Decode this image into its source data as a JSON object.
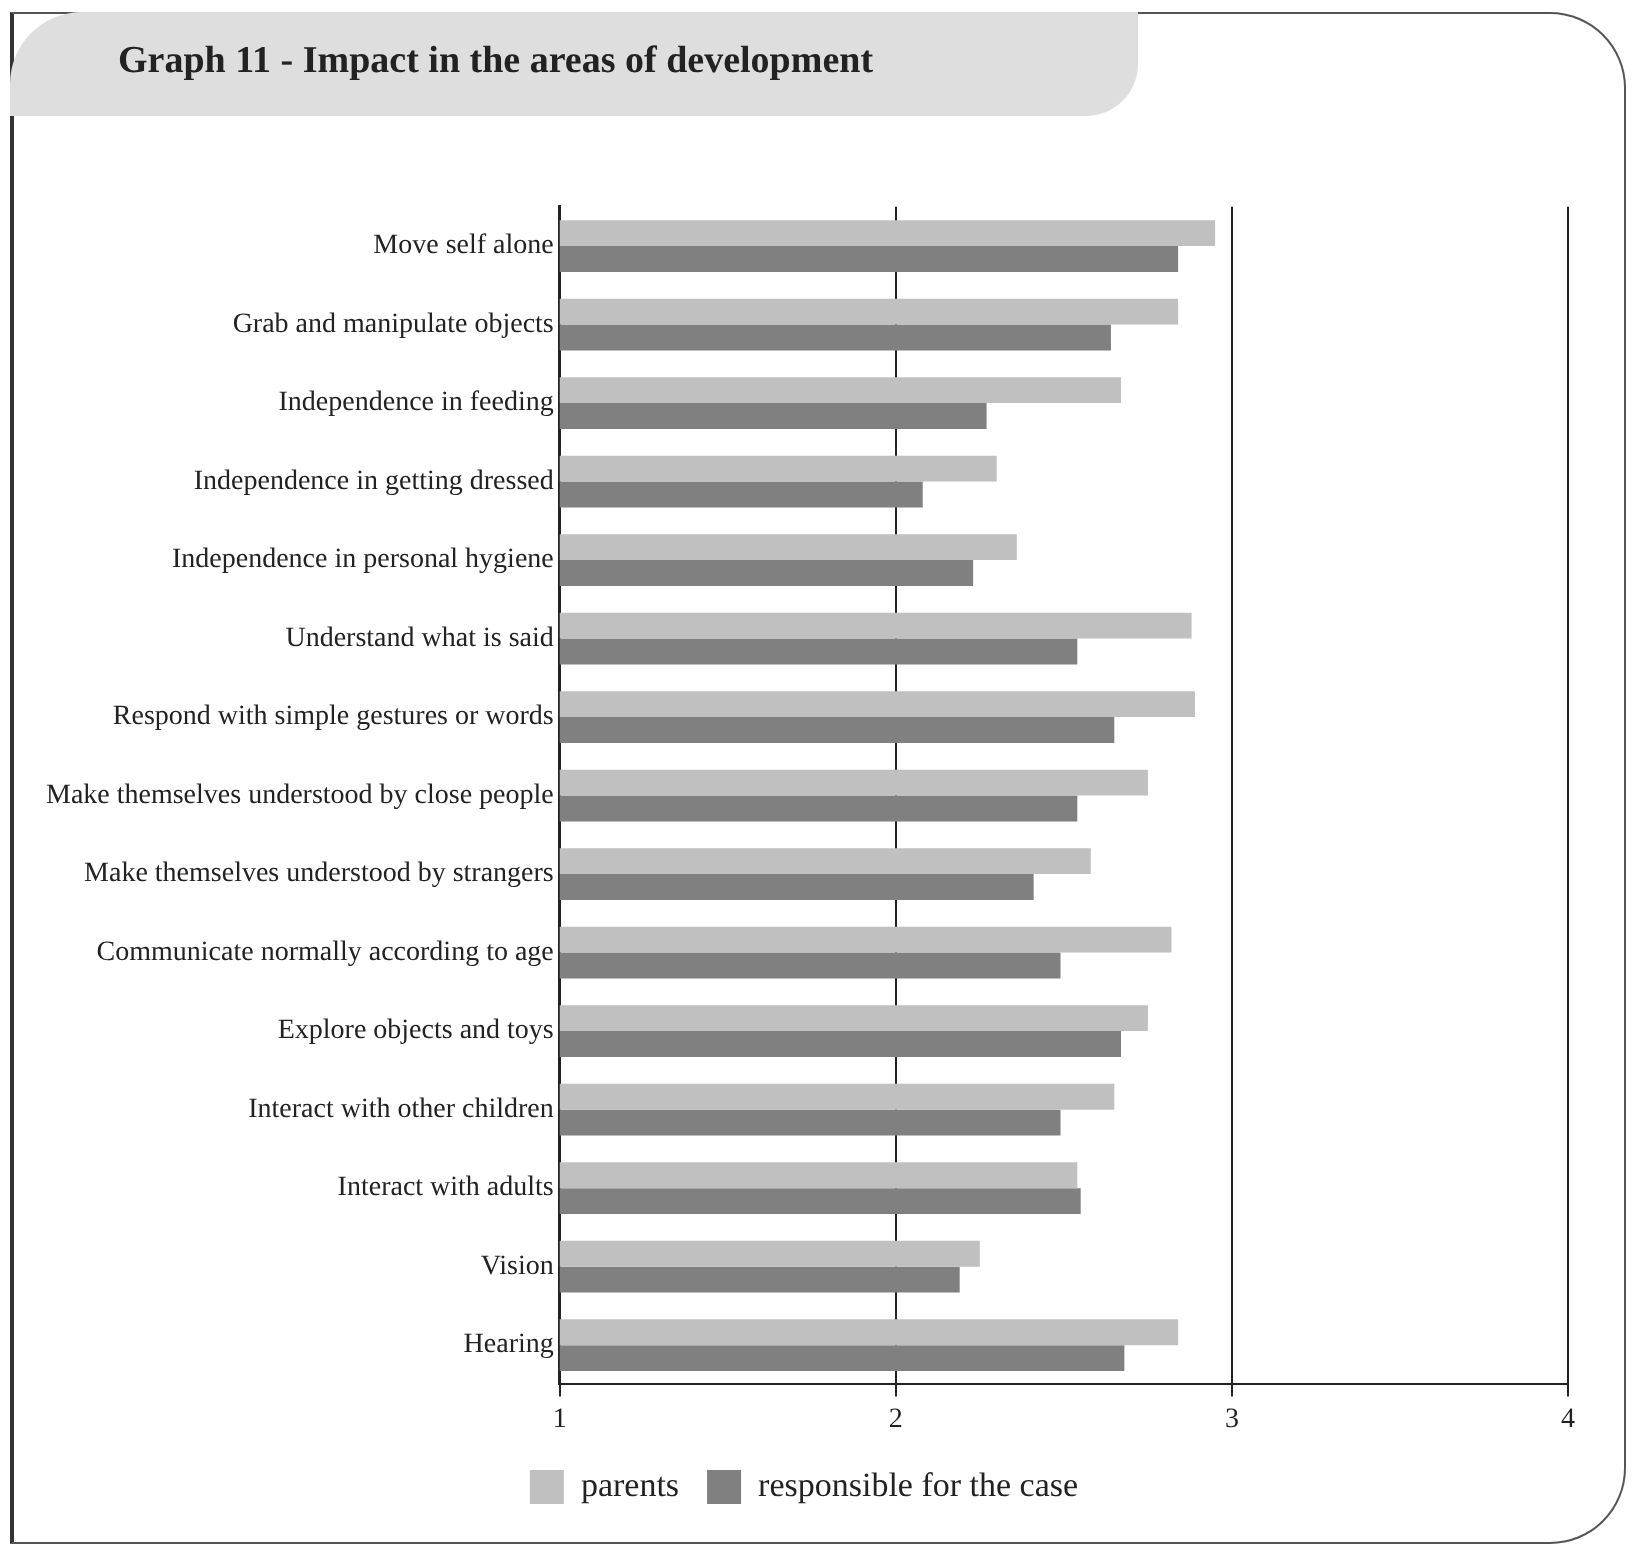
{
  "chart_data": {
    "type": "bar",
    "orientation": "horizontal",
    "title": "Graph 11 - Impact in the areas of development",
    "categories": [
      "Move self alone",
      "Grab and manipulate objects",
      "Independence in feeding",
      "Independence in getting dressed",
      "Independence in personal hygiene",
      "Understand what is said",
      "Respond with simple gestures or words",
      "Make themselves understood by close people",
      "Make themselves understood by strangers",
      "Communicate normally according to age",
      "Explore objects and toys",
      "Interact with other children",
      "Interact with adults",
      "Vision",
      "Hearing"
    ],
    "series": [
      {
        "name": "parents",
        "color": "#c0c0c0",
        "values": [
          2.95,
          2.84,
          2.67,
          2.3,
          2.36,
          2.88,
          2.89,
          2.75,
          2.58,
          2.82,
          2.75,
          2.65,
          2.54,
          2.25,
          2.84
        ]
      },
      {
        "name": "responsible for the case",
        "color": "#808080",
        "values": [
          2.84,
          2.64,
          2.27,
          2.08,
          2.23,
          2.54,
          2.65,
          2.54,
          2.41,
          2.49,
          2.67,
          2.49,
          2.55,
          2.19,
          2.68
        ]
      }
    ],
    "xlim": [
      1,
      4
    ],
    "xticks": [
      1,
      2,
      3,
      4
    ],
    "grid": "x",
    "legend": "bottom"
  }
}
